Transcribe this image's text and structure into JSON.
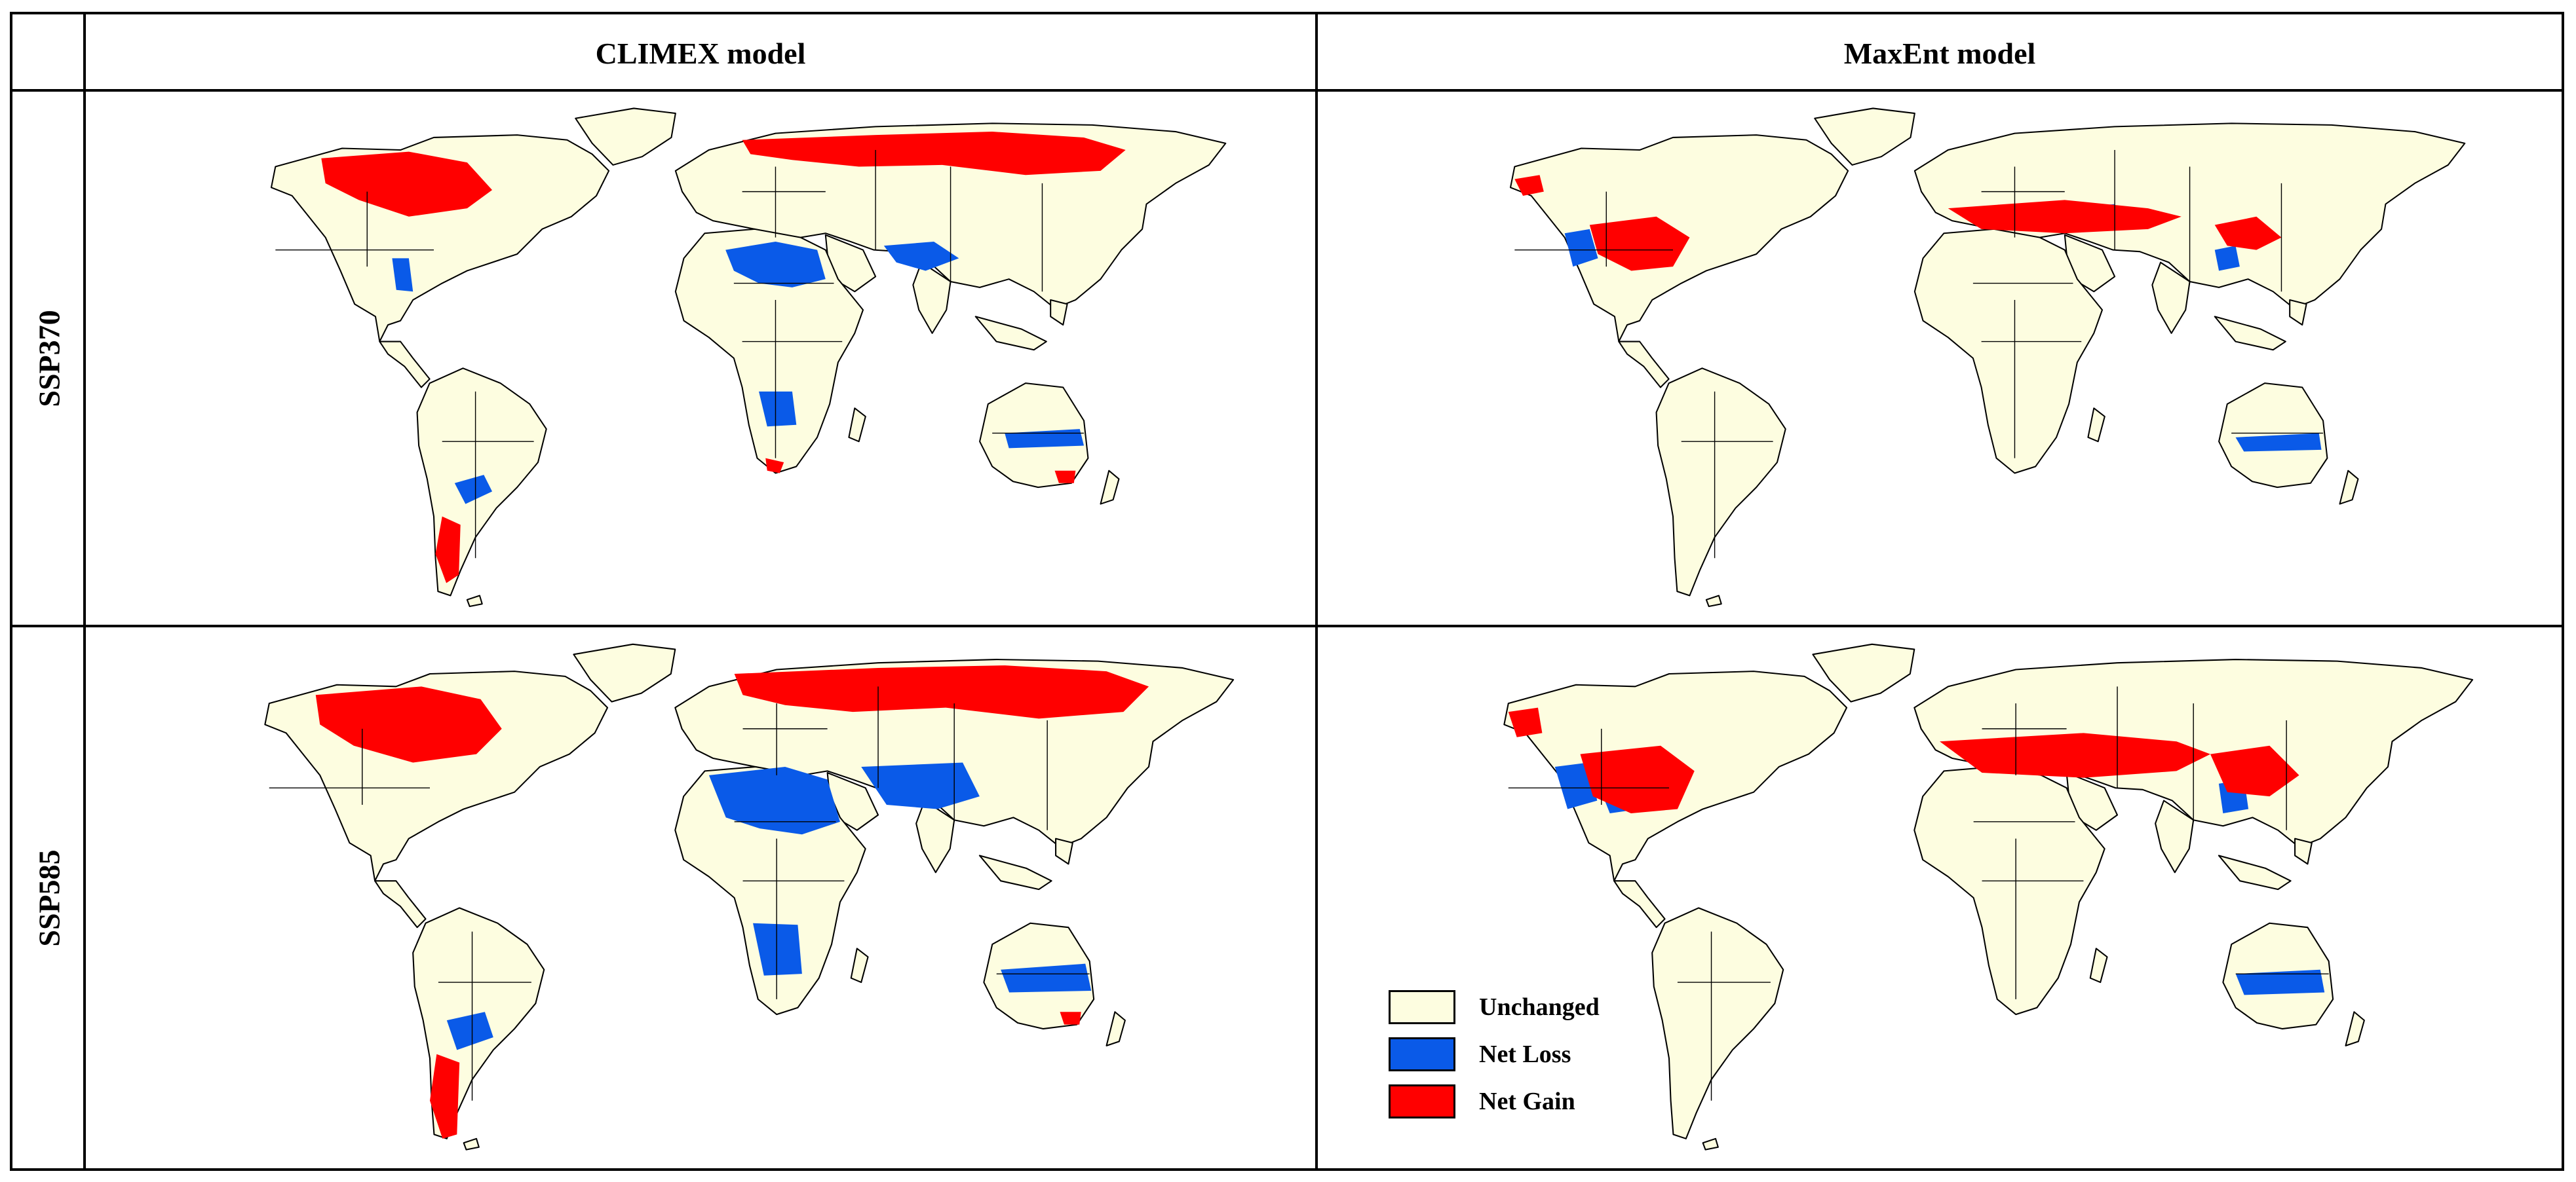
{
  "columns": [
    {
      "id": "climex",
      "label": "CLIMEX model"
    },
    {
      "id": "maxent",
      "label": "MaxEnt model"
    }
  ],
  "rows": [
    {
      "id": "ssp370",
      "label": "SSP370"
    },
    {
      "id": "ssp585",
      "label": "SSP585"
    }
  ],
  "colors": {
    "land": "#fdfde0",
    "border": "#000000",
    "loss": "#0a5ae8",
    "gain": "#ff0000"
  },
  "legend": [
    {
      "key": "unchanged",
      "label": "Unchanged",
      "color": "#fdfde0"
    },
    {
      "key": "loss",
      "label": "Net Loss",
      "color": "#0a5ae8"
    },
    {
      "key": "gain",
      "label": "Net Gain",
      "color": "#ff0000"
    }
  ]
}
